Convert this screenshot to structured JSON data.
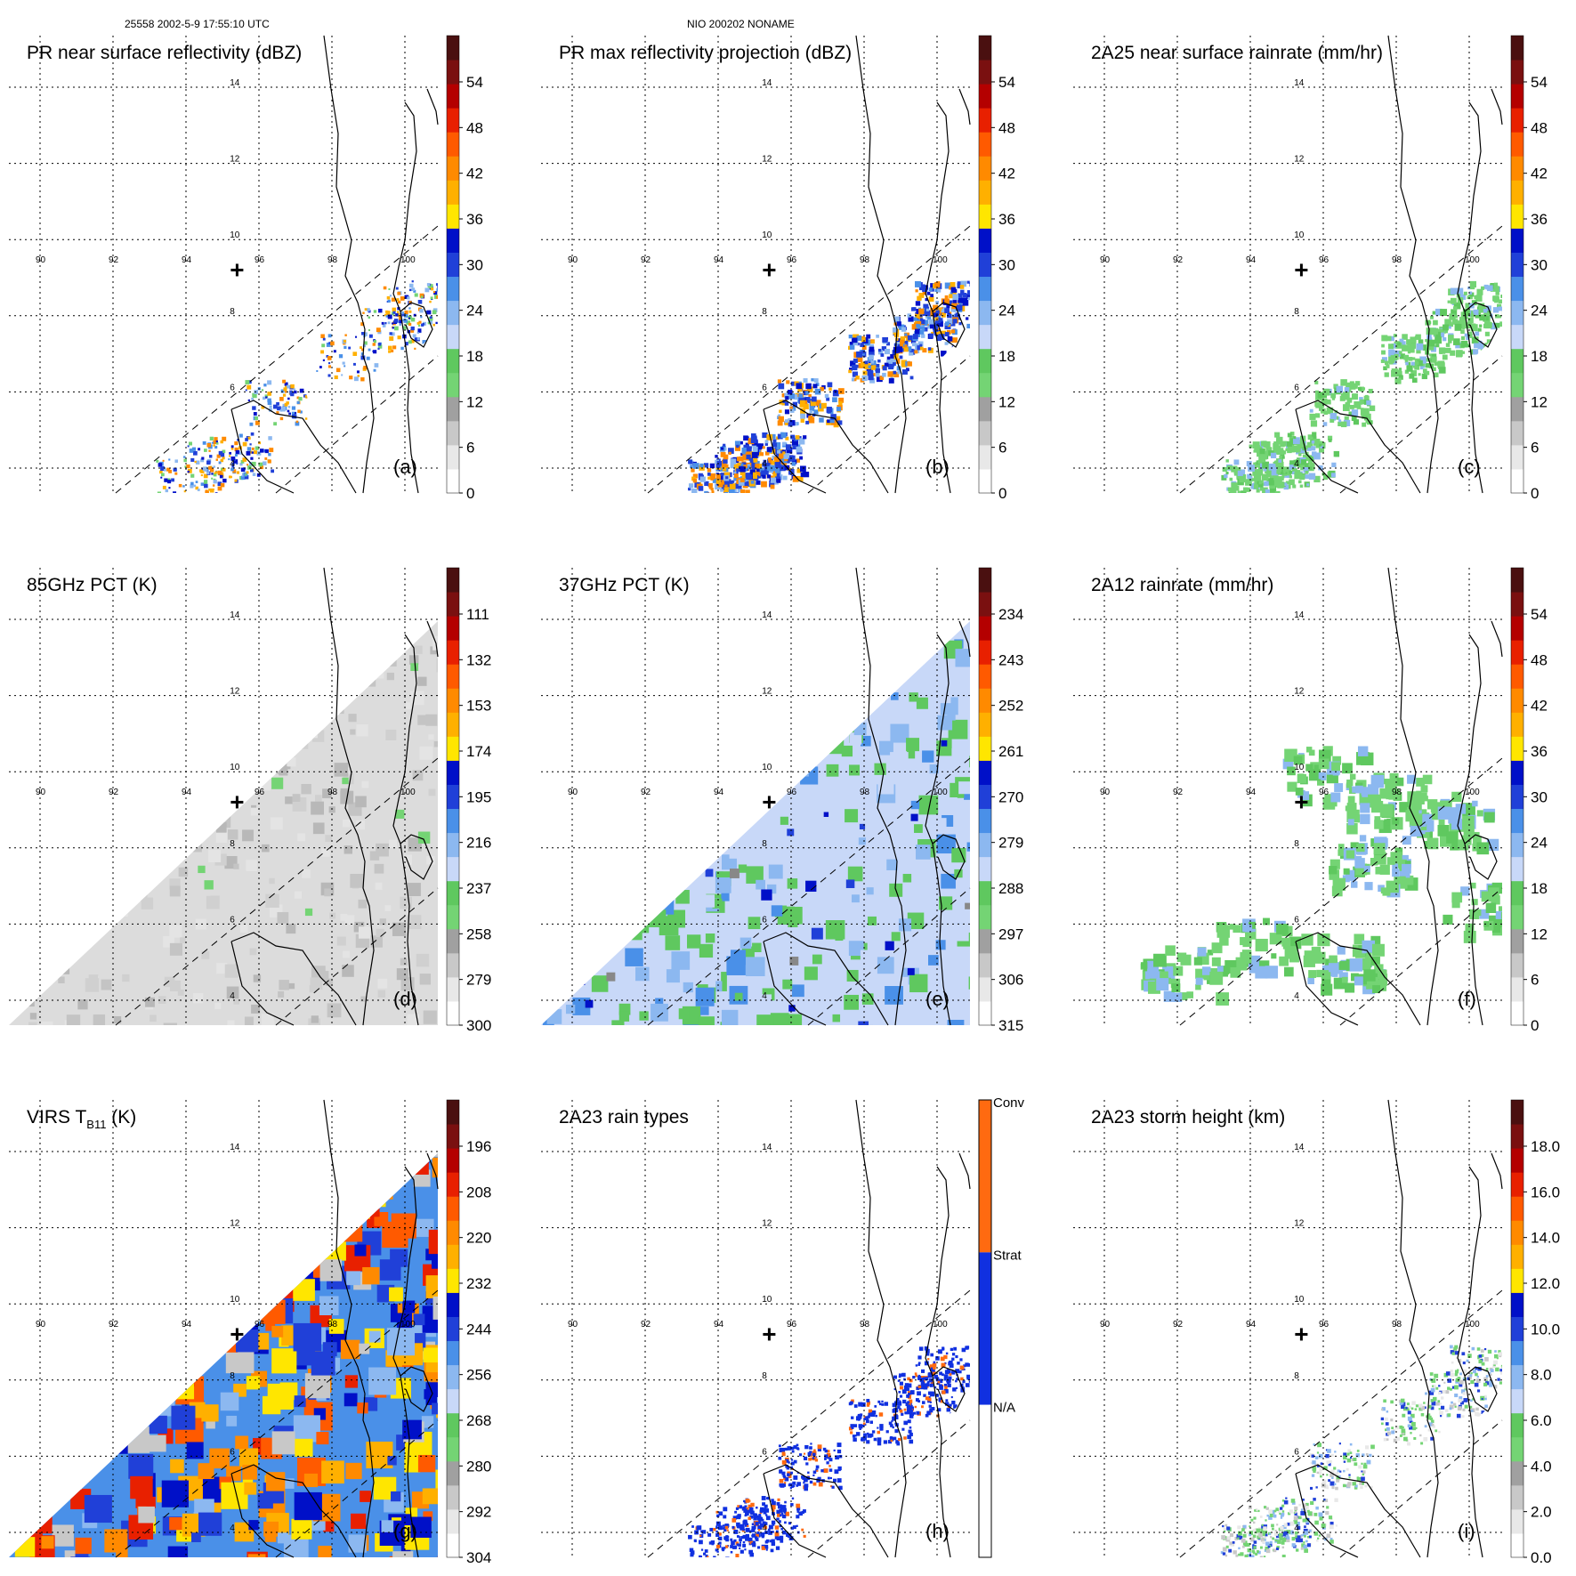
{
  "header": {
    "orbit_time": "25558 2002-5-9 17:55:10 UTC",
    "storm": "NIO 200202 NONAME"
  },
  "lon_labels": [
    "90",
    "92",
    "94",
    "96",
    "98",
    "100"
  ],
  "lat_labels": [
    "14",
    "12",
    "10",
    "8",
    "6",
    "4"
  ],
  "lon_ticks": [
    90,
    92,
    94,
    96,
    98,
    100
  ],
  "lat_ticks": [
    14,
    12,
    10,
    8,
    6,
    4
  ],
  "colors": {
    "rainbow": [
      "#ffffff",
      "#e8e8e8",
      "#c8c8c8",
      "#a0a0a0",
      "#74d474",
      "#5fc85f",
      "#c8d8f8",
      "#8cb8f0",
      "#4a90e8",
      "#2040d8",
      "#0010c8",
      "#ffe600",
      "#ffb000",
      "#ff8a00",
      "#ff5a00",
      "#e82000",
      "#b40000",
      "#7a1010",
      "#4a1010"
    ],
    "panel_bg_green": "#66cc66",
    "panel_bg_gray": "#dcdcdc",
    "rain_blue": "#1030e0",
    "rain_orange": "#ff6a10",
    "na_white": "#ffffff"
  },
  "panels": [
    {
      "id": "a",
      "title": "PR near surface reflectivity (dBZ)",
      "letter": "(a)",
      "cbar_labels": [
        "54",
        "48",
        "42",
        "36",
        "30",
        "24",
        "18",
        "12",
        "6",
        "0"
      ],
      "cbar_type": "rainbow",
      "field": "swath_sparse"
    },
    {
      "id": "b",
      "title": "PR max reflectivity projection (dBZ)",
      "letter": "(b)",
      "cbar_labels": [
        "54",
        "48",
        "42",
        "36",
        "30",
        "24",
        "18",
        "12",
        "6",
        "0"
      ],
      "cbar_type": "rainbow",
      "field": "swath_dense"
    },
    {
      "id": "c",
      "title": "2A25 near surface rainrate (mm/hr)",
      "letter": "(c)",
      "cbar_labels": [
        "54",
        "48",
        "42",
        "36",
        "30",
        "24",
        "18",
        "12",
        "6",
        "0"
      ],
      "cbar_type": "rainbow",
      "field": "swath_green"
    },
    {
      "id": "d",
      "title": "85GHz PCT (K)",
      "letter": "(d)",
      "cbar_labels": [
        "111",
        "132",
        "153",
        "174",
        "195",
        "216",
        "237",
        "258",
        "279",
        "300"
      ],
      "cbar_type": "rainbow",
      "field": "tmi_gray"
    },
    {
      "id": "e",
      "title": "37GHz PCT (K)",
      "letter": "(e)",
      "cbar_labels": [
        "234",
        "243",
        "252",
        "261",
        "270",
        "279",
        "288",
        "297",
        "306",
        "315"
      ],
      "cbar_type": "rainbow",
      "field": "tmi_blue"
    },
    {
      "id": "f",
      "title": "2A12 rainrate (mm/hr)",
      "letter": "(f)",
      "cbar_labels": [
        "54",
        "48",
        "42",
        "36",
        "30",
        "24",
        "18",
        "12",
        "6",
        "0"
      ],
      "cbar_type": "rainbow",
      "field": "tmi_green"
    },
    {
      "id": "g",
      "title_main": "VIRS T",
      "title_sub": "B11",
      "title_unit": " (K)",
      "letter": "(g)",
      "cbar_labels": [
        "196",
        "208",
        "220",
        "232",
        "244",
        "256",
        "268",
        "280",
        "292",
        "304"
      ],
      "cbar_type": "rainbow",
      "field": "virs"
    },
    {
      "id": "h",
      "title": "2A23 rain types",
      "letter": "(h)",
      "cbar_labels": [
        "Conv",
        "Strat",
        "N/A"
      ],
      "cbar_type": "types",
      "field": "swath_types"
    },
    {
      "id": "i",
      "title": "2A23 storm height (km)",
      "letter": "(i)",
      "cbar_labels": [
        "18.0",
        "16.0",
        "14.0",
        "12.0",
        "10.0",
        "8.0",
        "6.0",
        "4.0",
        "2.0",
        "0.0"
      ],
      "cbar_type": "rainbow",
      "field": "swath_height"
    }
  ]
}
